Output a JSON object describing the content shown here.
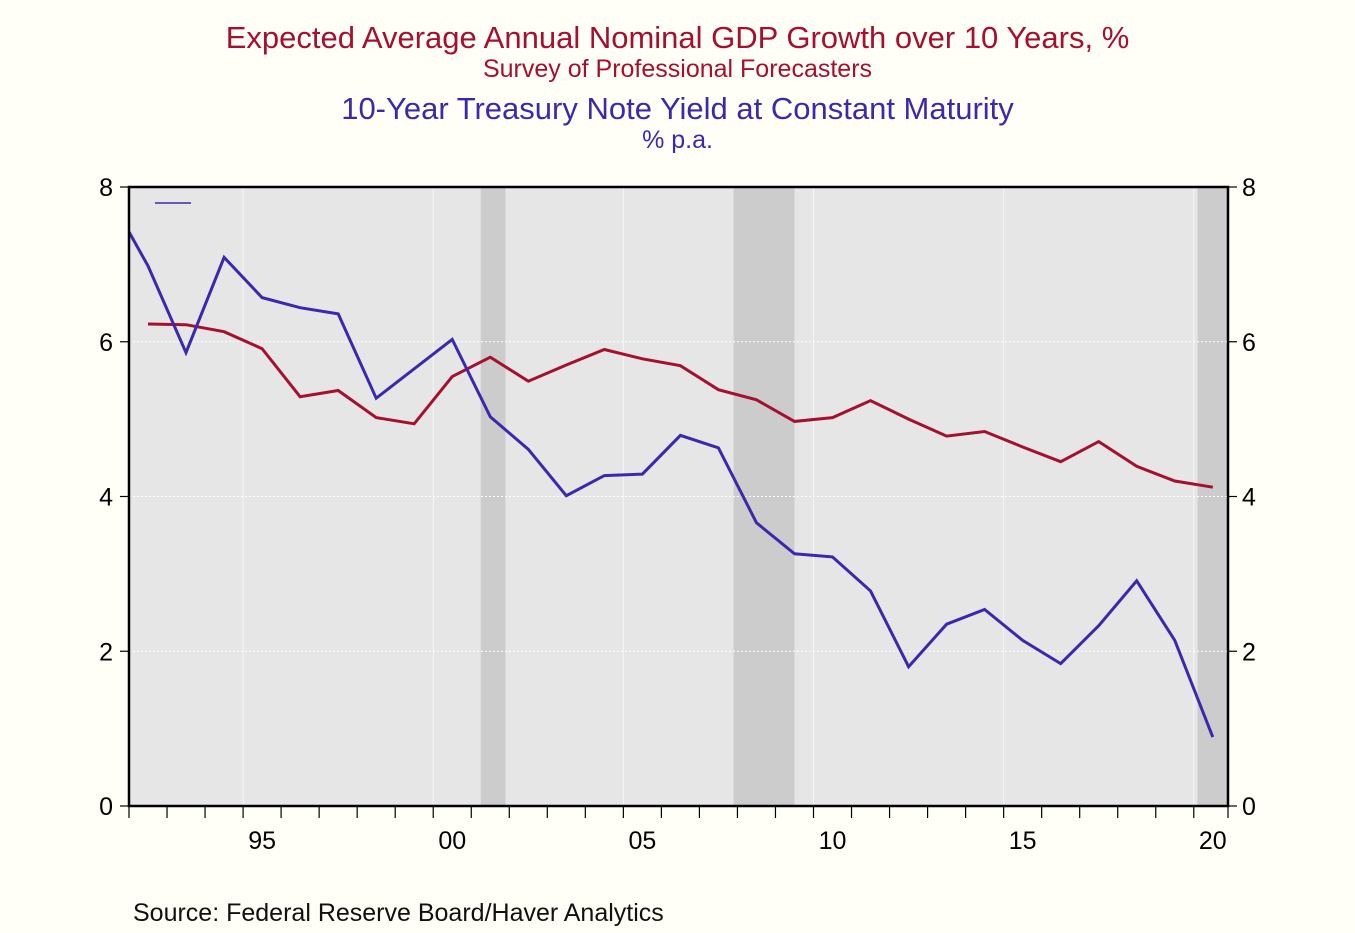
{
  "titles": {
    "line1": "Expected Average Annual Nominal GDP Growth over 10 Years, %",
    "line2": "Survey of Professional Forecasters",
    "line3": "10-Year Treasury Note Yield at Constant Maturity",
    "line4": "% p.a."
  },
  "source": "Source:  Federal Reserve Board/Haver Analytics",
  "chart_data": {
    "type": "line",
    "title": "Expected Average Annual Nominal GDP Growth over 10 Years, % / 10-Year Treasury Note Yield at Constant Maturity",
    "xlabel": "",
    "ylabel": "% p.a.",
    "xlim": [
      1992,
      2020.9
    ],
    "ylim": [
      0,
      8
    ],
    "y_ticks": [
      0,
      2,
      4,
      6,
      8
    ],
    "y_tick_labels": [
      "0",
      "2",
      "4",
      "6",
      "8"
    ],
    "x_ticks": [
      1995,
      2000,
      2005,
      2010,
      2015,
      2020
    ],
    "x_tick_labels": [
      "95",
      "00",
      "05",
      "10",
      "15",
      "20"
    ],
    "grid": true,
    "dual_axis": true,
    "recessions": [
      [
        2001.25,
        2001.9
      ],
      [
        2007.9,
        2009.5
      ],
      [
        2020.1,
        2020.9
      ]
    ],
    "colors": {
      "gdp": "#a5102f",
      "treasury": "#3a2aab",
      "plot_bg": "#e6e6e6",
      "recession": "#cccccc",
      "page_bg": "#fffff8"
    },
    "series": [
      {
        "name": "Expected Average Annual Nominal GDP Growth over 10 Years, %",
        "color": "#a5102f",
        "x": [
          1992.5,
          1993.5,
          1994.5,
          1995.5,
          1996.5,
          1997.5,
          1998.5,
          1999.5,
          2000.5,
          2001.5,
          2002.5,
          2003.5,
          2004.5,
          2005.5,
          2006.5,
          2007.5,
          2008.5,
          2009.5,
          2010.5,
          2011.5,
          2012.5,
          2013.5,
          2014.5,
          2015.5,
          2016.5,
          2017.5,
          2018.5,
          2019.5,
          2020.5
        ],
        "values": [
          6.23,
          6.22,
          6.13,
          5.91,
          5.29,
          5.37,
          5.02,
          4.94,
          5.55,
          5.8,
          5.49,
          5.7,
          5.9,
          5.78,
          5.69,
          5.38,
          5.25,
          4.97,
          5.02,
          5.24,
          5.0,
          4.78,
          4.84,
          4.64,
          4.45,
          4.71,
          4.39,
          4.2,
          4.12
        ]
      },
      {
        "name": "10-Year Treasury Note Yield at Constant Maturity",
        "color": "#3a2aab",
        "x": [
          1992.0,
          1992.5,
          1993.5,
          1994.5,
          1995.5,
          1996.5,
          1997.5,
          1998.5,
          2000.5,
          2001.5,
          2002.5,
          2003.5,
          2004.5,
          2005.5,
          2006.5,
          2007.5,
          2008.5,
          2009.5,
          2010.5,
          2011.5,
          2012.5,
          2013.5,
          2014.5,
          2015.5,
          2016.5,
          2017.5,
          2018.5,
          2019.5,
          2020.5
        ],
        "values": [
          7.42,
          6.98,
          5.86,
          7.09,
          6.57,
          6.44,
          6.36,
          5.27,
          6.03,
          5.03,
          4.61,
          4.01,
          4.27,
          4.29,
          4.79,
          4.63,
          3.66,
          3.26,
          3.22,
          2.78,
          1.8,
          2.35,
          2.54,
          2.14,
          1.84,
          2.33,
          2.91,
          2.14,
          0.89
        ]
      }
    ]
  }
}
